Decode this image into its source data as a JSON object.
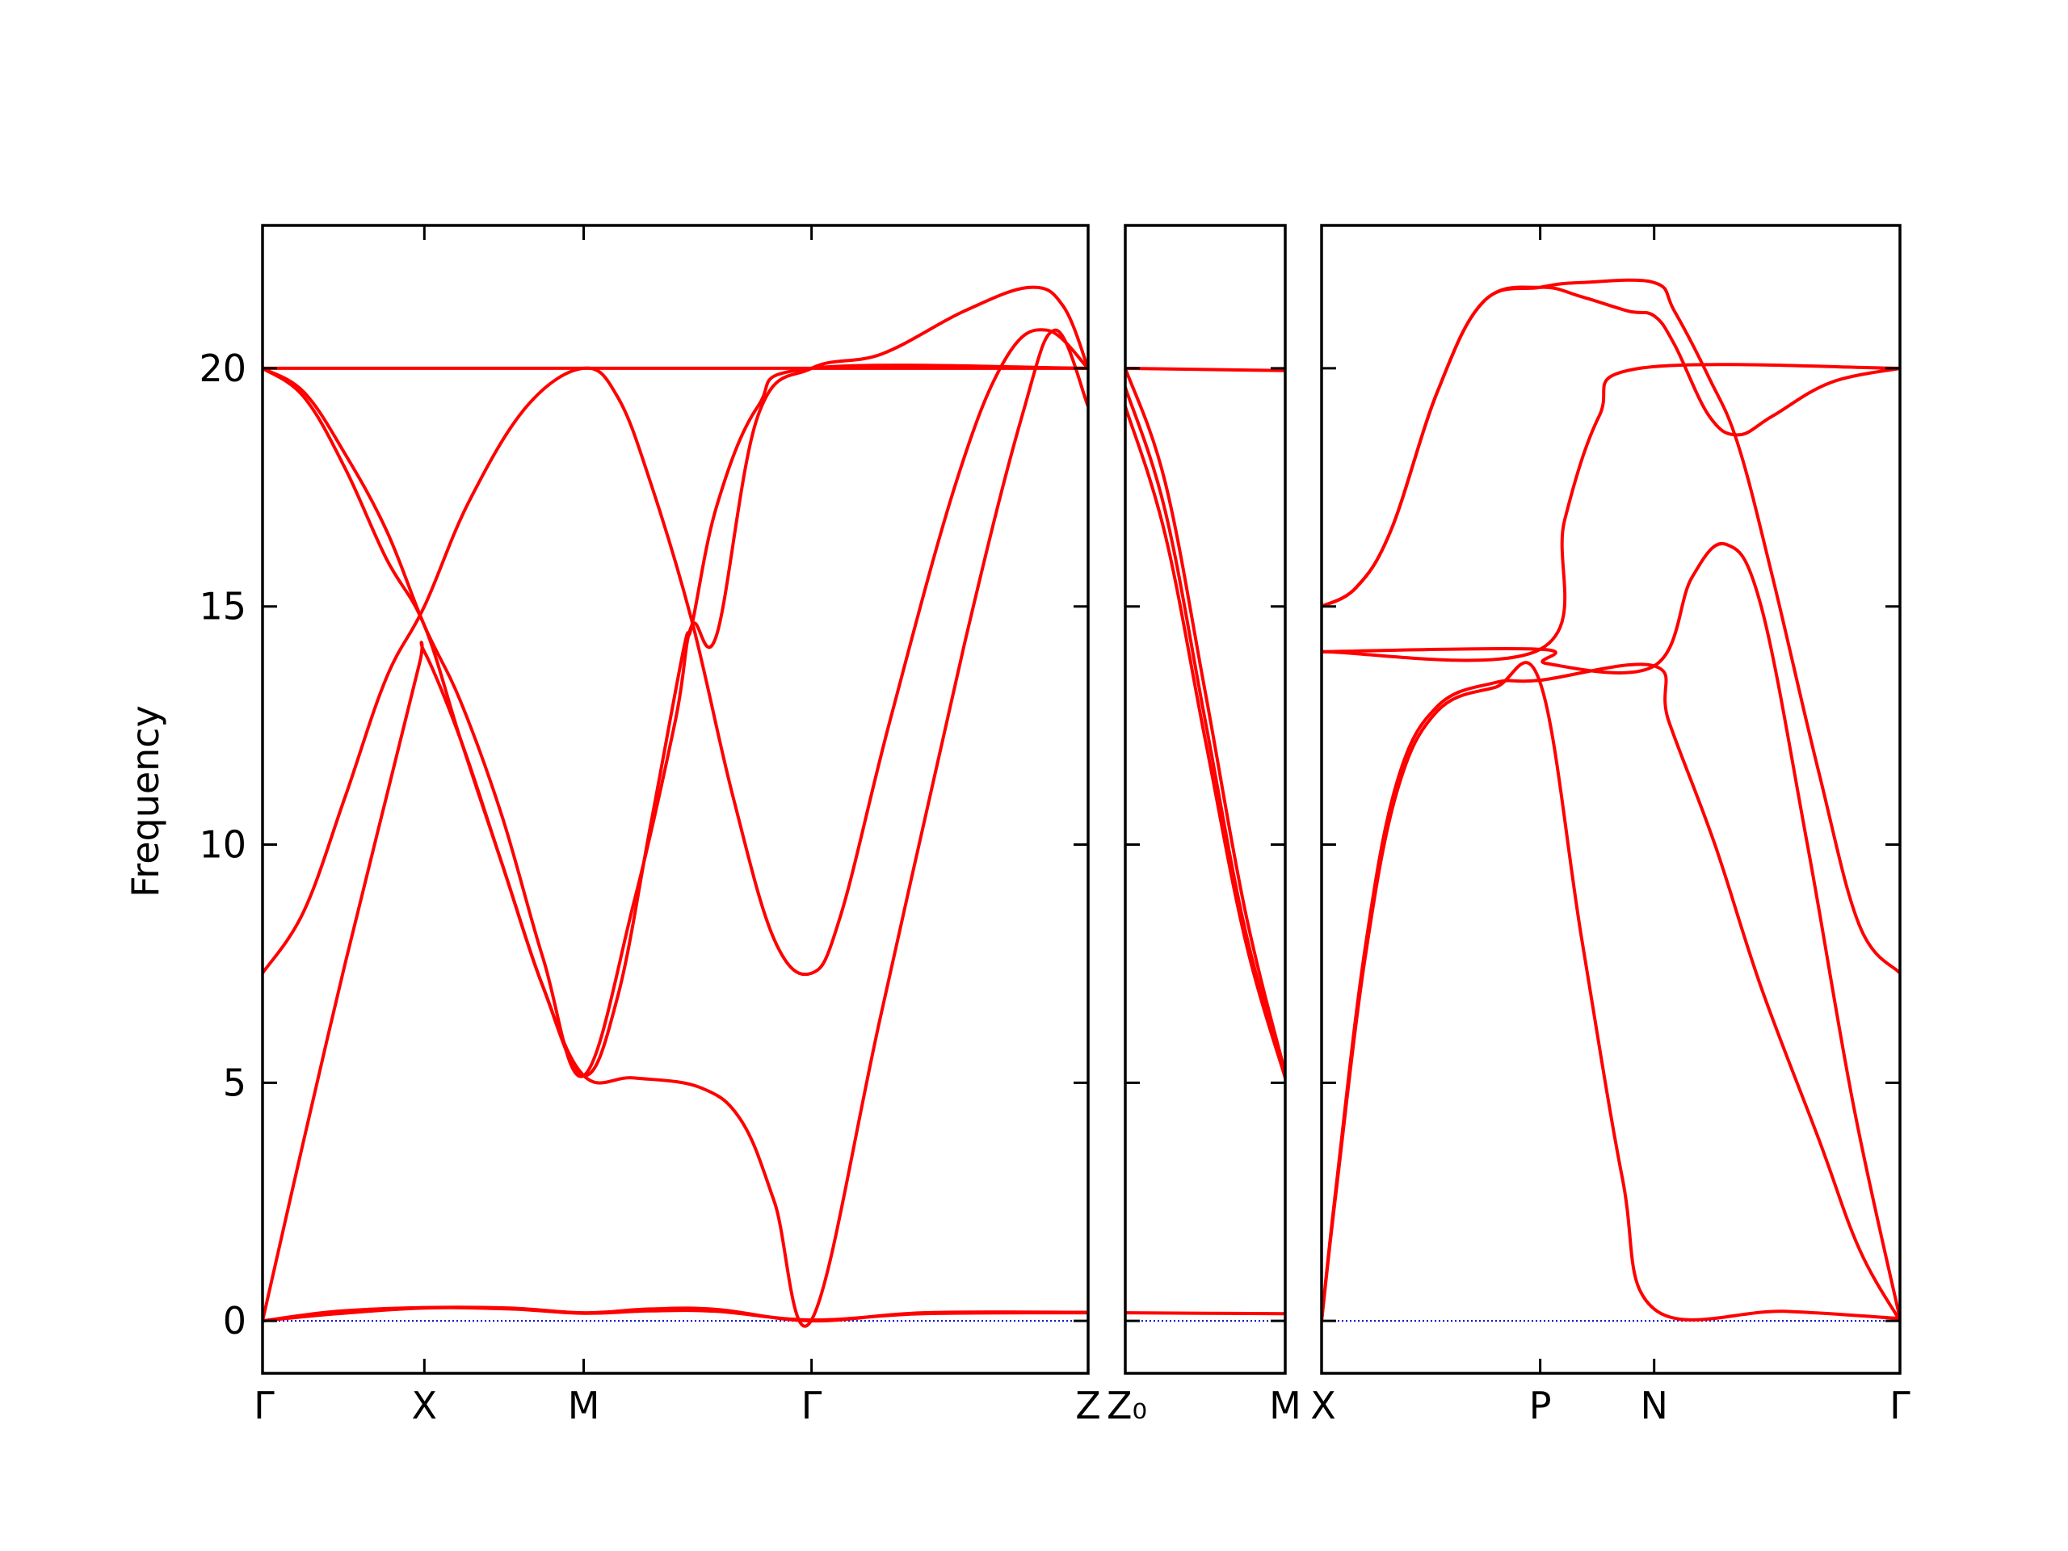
{
  "chart_data": {
    "type": "line",
    "ylabel": "Frequency",
    "ylim": [
      -1.1,
      23.0
    ],
    "yticks": [
      0,
      5,
      10,
      15,
      20
    ],
    "line_color": "#ff0000",
    "zero_line_color": "#0000cc",
    "panels": [
      {
        "segment_labels": [
          "Γ",
          "X",
          "M",
          "Γ",
          "Z"
        ],
        "segment_positions": [
          0,
          0.196,
          0.389,
          0.665,
          1.0
        ],
        "bands": [
          [
            [
              0,
              0
            ],
            [
              0.09,
              0.2
            ],
            [
              0.196,
              0.28
            ],
            [
              0.3,
              0.27
            ],
            [
              0.389,
              0.17
            ],
            [
              0.47,
              0.25
            ],
            [
              0.55,
              0.24
            ],
            [
              0.665,
              0
            ],
            [
              0.8,
              0.17
            ],
            [
              1.0,
              0.18
            ]
          ],
          [
            [
              0,
              0
            ],
            [
              0.09,
              0.15
            ],
            [
              0.196,
              0.27
            ],
            [
              0.3,
              0.25
            ],
            [
              0.389,
              0.16
            ],
            [
              0.47,
              0.21
            ],
            [
              0.55,
              0.2
            ],
            [
              0.665,
              0.02
            ],
            [
              0.8,
              0.15
            ],
            [
              1.0,
              0.17
            ]
          ],
          [
            [
              0,
              0
            ],
            [
              0.05,
              3.8
            ],
            [
              0.1,
              7.5
            ],
            [
              0.15,
              11.0
            ],
            [
              0.19,
              13.8
            ],
            [
              0.196,
              14.05
            ],
            [
              0.24,
              12.2
            ],
            [
              0.29,
              9.6
            ],
            [
              0.34,
              7.0
            ],
            [
              0.389,
              5.15
            ],
            [
              0.45,
              5.1
            ],
            [
              0.53,
              4.9
            ],
            [
              0.58,
              4.2
            ],
            [
              0.62,
              2.5
            ],
            [
              0.665,
              0.02
            ],
            [
              0.75,
              6.5
            ],
            [
              0.85,
              14.2
            ],
            [
              0.92,
              19.0
            ],
            [
              0.96,
              20.8
            ],
            [
              1.0,
              19.2
            ]
          ],
          [
            [
              0,
              7.3
            ],
            [
              0.05,
              8.6
            ],
            [
              0.1,
              11.0
            ],
            [
              0.15,
              13.5
            ],
            [
              0.196,
              15.0
            ],
            [
              0.25,
              17.2
            ],
            [
              0.32,
              19.2
            ],
            [
              0.389,
              20.0
            ],
            [
              0.43,
              19.4
            ],
            [
              0.47,
              17.6
            ],
            [
              0.52,
              14.7
            ],
            [
              0.57,
              11.0
            ],
            [
              0.62,
              8.0
            ],
            [
              0.665,
              7.3
            ],
            [
              0.7,
              8.5
            ],
            [
              0.76,
              12.6
            ],
            [
              0.84,
              17.6
            ],
            [
              0.9,
              20.2
            ],
            [
              0.95,
              20.8
            ],
            [
              1.0,
              20.0
            ]
          ],
          [
            [
              0,
              20.0
            ],
            [
              0.05,
              19.4
            ],
            [
              0.1,
              17.9
            ],
            [
              0.15,
              16.0
            ],
            [
              0.196,
              14.6
            ],
            [
              0.24,
              12.2
            ],
            [
              0.29,
              9.6
            ],
            [
              0.34,
              7.0
            ],
            [
              0.389,
              5.15
            ],
            [
              0.43,
              6.8
            ],
            [
              0.47,
              10.4
            ],
            [
              0.51,
              14.1
            ],
            [
              0.52,
              14.6
            ],
            [
              0.55,
              17.1
            ],
            [
              0.6,
              19.2
            ],
            [
              0.665,
              20.0
            ],
            [
              1.0,
              20.0
            ]
          ],
          [
            [
              0,
              20.0
            ],
            [
              0.05,
              19.5
            ],
            [
              0.1,
              18.2
            ],
            [
              0.15,
              16.6
            ],
            [
              0.196,
              14.6
            ],
            [
              0.24,
              13.0
            ],
            [
              0.29,
              10.6
            ],
            [
              0.34,
              7.6
            ],
            [
              0.389,
              5.15
            ],
            [
              0.45,
              8.8
            ],
            [
              0.5,
              12.6
            ],
            [
              0.52,
              14.6
            ],
            [
              0.55,
              14.4
            ],
            [
              0.6,
              19.0
            ],
            [
              0.665,
              20.0
            ],
            [
              0.75,
              20.3
            ],
            [
              0.85,
              21.2
            ],
            [
              0.93,
              21.7
            ],
            [
              0.97,
              21.3
            ],
            [
              1.0,
              20.0
            ]
          ],
          [
            [
              0,
              20.0
            ],
            [
              0.389,
              20.0
            ],
            [
              1.0,
              20.0
            ]
          ]
        ]
      },
      {
        "segment_labels": [
          "Z₀",
          "M"
        ],
        "segment_positions": [
          0,
          1.0
        ],
        "bands": [
          [
            [
              0,
              0.17
            ],
            [
              1.0,
              0.15
            ]
          ],
          [
            [
              0,
              20.0
            ],
            [
              1.0,
              19.95
            ]
          ],
          [
            [
              0,
              19.2
            ],
            [
              0.25,
              16.5
            ],
            [
              0.5,
              12.2
            ],
            [
              0.75,
              8.0
            ],
            [
              1.0,
              5.1
            ]
          ],
          [
            [
              0,
              19.6
            ],
            [
              0.25,
              17.0
            ],
            [
              0.5,
              12.6
            ],
            [
              0.75,
              8.2
            ],
            [
              1.0,
              5.2
            ]
          ],
          [
            [
              0,
              20.0
            ],
            [
              0.25,
              17.6
            ],
            [
              0.5,
              13.2
            ],
            [
              0.75,
              8.6
            ],
            [
              1.0,
              5.2
            ]
          ]
        ]
      },
      {
        "segment_labels": [
          "X",
          "P",
          "N",
          "Γ"
        ],
        "segment_positions": [
          0,
          0.378,
          0.575,
          1.0
        ],
        "bands": [
          [
            [
              0,
              0
            ],
            [
              0.025,
              2.8
            ],
            [
              0.075,
              7.8
            ],
            [
              0.13,
              11.3
            ],
            [
              0.2,
              12.9
            ],
            [
              0.3,
              13.4
            ],
            [
              0.378,
              13.45
            ],
            [
              0.575,
              13.75
            ],
            [
              0.6,
              12.6
            ],
            [
              0.68,
              10.0
            ],
            [
              0.76,
              7.0
            ],
            [
              0.86,
              3.8
            ],
            [
              0.93,
              1.5
            ],
            [
              1.0,
              0
            ]
          ],
          [
            [
              0,
              0
            ],
            [
              0.025,
              2.7
            ],
            [
              0.075,
              7.6
            ],
            [
              0.13,
              11.1
            ],
            [
              0.2,
              12.8
            ],
            [
              0.3,
              13.3
            ],
            [
              0.378,
              13.4
            ],
            [
              0.45,
              8.0
            ],
            [
              0.52,
              3.0
            ],
            [
              0.575,
              0.25
            ],
            [
              0.8,
              0.2
            ],
            [
              1.0,
              0.05
            ]
          ],
          [
            [
              0,
              14.05
            ],
            [
              0.378,
              14.1
            ],
            [
              0.39,
              13.8
            ],
            [
              0.575,
              13.75
            ],
            [
              0.64,
              15.6
            ],
            [
              0.7,
              16.3
            ],
            [
              0.76,
              15.0
            ],
            [
              0.84,
              10.0
            ],
            [
              0.92,
              4.5
            ],
            [
              1.0,
              0.05
            ]
          ],
          [
            [
              0,
              14.05
            ],
            [
              0.378,
              14.1
            ],
            [
              0.42,
              16.8
            ],
            [
              0.48,
              19.0
            ],
            [
              0.55,
              20.0
            ],
            [
              1.0,
              20.0
            ]
          ],
          [
            [
              0,
              15.0
            ],
            [
              0.06,
              15.4
            ],
            [
              0.12,
              16.6
            ],
            [
              0.2,
              19.5
            ],
            [
              0.28,
              21.4
            ],
            [
              0.378,
              21.7
            ],
            [
              0.45,
              21.5
            ],
            [
              0.53,
              21.2
            ],
            [
              0.575,
              21.1
            ],
            [
              0.61,
              20.5
            ],
            [
              0.67,
              19.0
            ],
            [
              0.72,
              18.6
            ],
            [
              0.78,
              19.0
            ],
            [
              0.88,
              19.7
            ],
            [
              1.0,
              20.0
            ]
          ],
          [
            [
              0,
              15.0
            ],
            [
              0.06,
              15.4
            ],
            [
              0.12,
              16.6
            ],
            [
              0.2,
              19.5
            ],
            [
              0.28,
              21.4
            ],
            [
              0.378,
              21.7
            ],
            [
              0.45,
              21.8
            ],
            [
              0.575,
              21.8
            ],
            [
              0.61,
              21.2
            ],
            [
              0.67,
              19.8
            ],
            [
              0.72,
              18.4
            ],
            [
              0.78,
              15.6
            ],
            [
              0.86,
              11.5
            ],
            [
              0.93,
              8.3
            ],
            [
              1.0,
              7.3
            ]
          ]
        ]
      }
    ]
  }
}
